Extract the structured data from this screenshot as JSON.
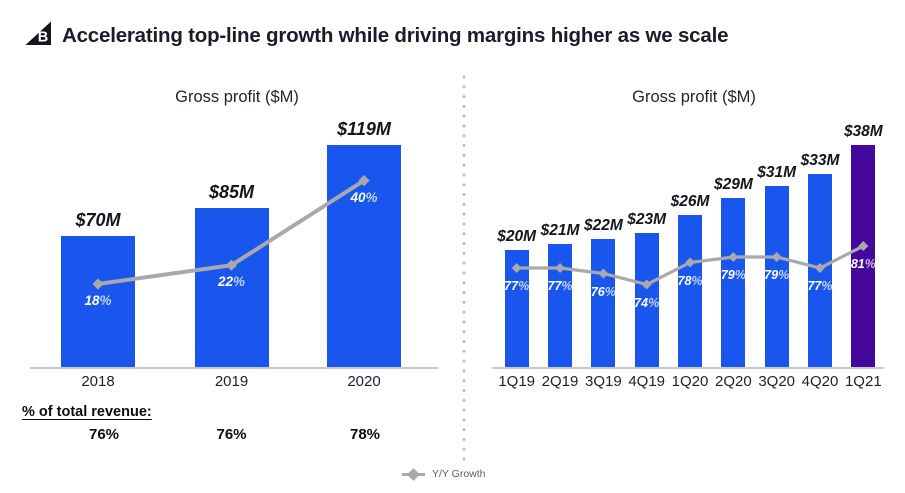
{
  "header": {
    "title": "Accelerating top-line growth while driving margins higher as we scale",
    "logo": "bigcommerce-b-logo",
    "logo_letter": "B"
  },
  "chart_data": [
    {
      "type": "bar",
      "title": "Gross profit ($M)",
      "categories": [
        "2018",
        "2019",
        "2020"
      ],
      "series": [
        {
          "name": "Gross profit ($M)",
          "type": "bar",
          "values": [
            70,
            85,
            119
          ],
          "labels": [
            "$70M",
            "$85M",
            "$119M"
          ]
        },
        {
          "name": "Y/Y Growth",
          "type": "line",
          "values": [
            18,
            22,
            40
          ],
          "labels": [
            "18%",
            "22%",
            "40%"
          ]
        }
      ],
      "footnote": {
        "label": "% of total revenue:",
        "values": [
          "76%",
          "76%",
          "78%"
        ]
      },
      "ylim": [
        0,
        130
      ],
      "grid": false,
      "legend_position": "bottom-center",
      "bar_color": "#1856EE"
    },
    {
      "type": "bar",
      "title": "Gross profit ($M)",
      "categories": [
        "1Q19",
        "2Q19",
        "3Q19",
        "4Q19",
        "1Q20",
        "2Q20",
        "3Q20",
        "4Q20",
        "1Q21"
      ],
      "series": [
        {
          "name": "Gross profit ($M)",
          "type": "bar",
          "values": [
            20,
            21,
            22,
            23,
            26,
            29,
            31,
            33,
            38
          ],
          "labels": [
            "$20M",
            "$21M",
            "$22M",
            "$23M",
            "$26M",
            "$29M",
            "$31M",
            "$33M",
            "$38M"
          ]
        },
        {
          "name": "Y/Y Growth",
          "type": "line",
          "values": [
            77,
            77,
            76,
            74,
            78,
            79,
            79,
            77,
            81
          ],
          "labels": [
            "77%",
            "77%",
            "76%",
            "74%",
            "78%",
            "79%",
            "79%",
            "77%",
            "81%"
          ]
        }
      ],
      "highlight_index": 8,
      "ylim": [
        0,
        42
      ],
      "grid": false,
      "bar_color": "#1856EE",
      "highlight_color": "#45089C"
    }
  ],
  "legend": {
    "label": "Y/Y Growth"
  },
  "colors": {
    "bar_blue": "#1856EE",
    "highlight_purple": "#45089C",
    "line_gray": "#A8A8AD",
    "header_navy": "#191D29",
    "axis_gray": "#C7C9CD",
    "label_dark": "#14161F",
    "label_white": "#FFFFFF"
  }
}
